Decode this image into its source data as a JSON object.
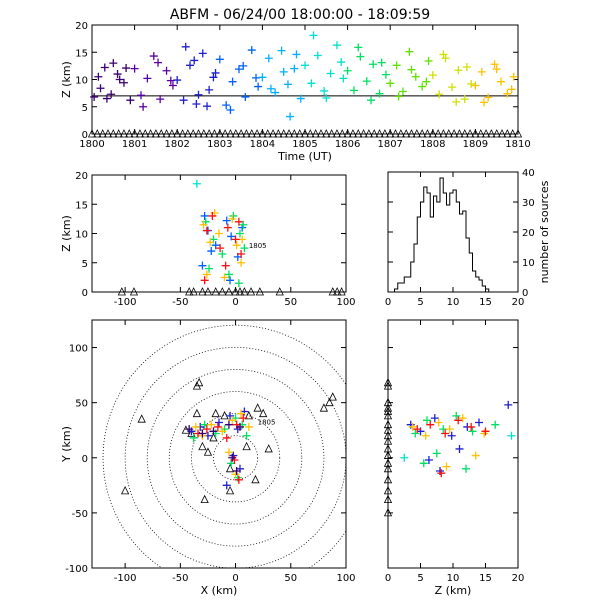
{
  "title": "ABFM - 06/24/00 18:00:00 - 18:09:59",
  "colors": {
    "axis": "#000000",
    "rainbow": [
      "#3a0070",
      "#5a00a0",
      "#2020d0",
      "#0060ff",
      "#00b0ff",
      "#00e0d0",
      "#00e060",
      "#60e000",
      "#d0e000",
      "#ffc000",
      "#ff7000",
      "#ff1010"
    ]
  },
  "chart_data": [
    {
      "id": "time-height",
      "type": "scatter",
      "xlabel": "Time (UT)",
      "ylabel": "Z (km)",
      "xlim": [
        1800,
        1810
      ],
      "ylim": [
        0,
        20
      ],
      "x_ticks": [
        "1800",
        "1801",
        "1802",
        "1803",
        "1804",
        "1805",
        "1806",
        "1807",
        "1808",
        "1809",
        "1810"
      ],
      "y_ticks": [
        "0",
        "5",
        "10",
        "15",
        "20"
      ],
      "reference_line_z": 7,
      "sensor_marker_z": 0,
      "series": [
        {
          "color_index": 0,
          "x": [
            1800.05,
            1800.15,
            1800.3,
            1800.45,
            1800.6,
            1800.75,
            1800.9,
            1800.2,
            1800.5,
            1800.8,
            1800.35,
            1800.65
          ],
          "y": [
            6.8,
            10.5,
            12.2,
            7.3,
            11.0,
            9.4,
            6.2,
            8.4,
            13.0,
            12.1,
            6.5,
            10.0
          ]
        },
        {
          "color_index": 1,
          "x": [
            1801.0,
            1801.15,
            1801.3,
            1801.45,
            1801.6,
            1801.75,
            1801.9,
            1801.2,
            1801.55,
            1801.85
          ],
          "y": [
            12.0,
            7.1,
            10.2,
            14.3,
            6.4,
            11.6,
            8.9,
            5.0,
            13.1,
            9.8
          ]
        },
        {
          "color_index": 2,
          "x": [
            1802.0,
            1802.15,
            1802.3,
            1802.45,
            1802.6,
            1802.75,
            1802.9,
            1802.2,
            1802.5,
            1802.85,
            1802.4,
            1802.7
          ],
          "y": [
            9.9,
            6.2,
            12.6,
            5.5,
            14.8,
            8.1,
            11.2,
            16.0,
            7.2,
            10.4,
            13.5,
            5.1
          ]
        },
        {
          "color_index": 3,
          "x": [
            1803.0,
            1803.15,
            1803.3,
            1803.45,
            1803.6,
            1803.75,
            1803.9,
            1803.25,
            1803.55,
            1803.85
          ],
          "y": [
            13.7,
            5.3,
            9.6,
            11.9,
            6.8,
            15.4,
            8.7,
            4.4,
            12.5,
            10.3
          ]
        },
        {
          "color_index": 4,
          "x": [
            1804.0,
            1804.15,
            1804.3,
            1804.45,
            1804.6,
            1804.75,
            1804.9,
            1804.2,
            1804.5,
            1804.8,
            1804.65
          ],
          "y": [
            10.4,
            13.9,
            7.6,
            15.3,
            9.1,
            12.0,
            6.5,
            8.3,
            11.4,
            14.6,
            3.2
          ]
        },
        {
          "color_index": 5,
          "x": [
            1805.0,
            1805.15,
            1805.3,
            1805.45,
            1805.6,
            1805.75,
            1805.9,
            1805.2,
            1805.5,
            1805.85
          ],
          "y": [
            12.6,
            9.3,
            14.4,
            7.9,
            11.1,
            16.3,
            10.2,
            18.1,
            6.6,
            13.2
          ]
        },
        {
          "color_index": 6,
          "x": [
            1806.0,
            1806.15,
            1806.3,
            1806.45,
            1806.6,
            1806.75,
            1806.9,
            1806.25,
            1806.55,
            1806.8
          ],
          "y": [
            11.6,
            8.0,
            14.2,
            9.7,
            12.8,
            7.4,
            10.9,
            15.9,
            6.2,
            13.1
          ]
        },
        {
          "color_index": 7,
          "x": [
            1807.0,
            1807.15,
            1807.3,
            1807.45,
            1807.6,
            1807.75,
            1807.9,
            1807.2,
            1807.5,
            1807.85
          ],
          "y": [
            9.3,
            12.6,
            7.8,
            15.1,
            10.5,
            8.7,
            13.4,
            6.9,
            11.8,
            9.6
          ]
        },
        {
          "color_index": 8,
          "x": [
            1808.0,
            1808.15,
            1808.3,
            1808.45,
            1808.6,
            1808.75,
            1808.9,
            1808.25,
            1808.55,
            1808.8
          ],
          "y": [
            10.8,
            7.3,
            13.9,
            8.6,
            11.7,
            6.4,
            9.2,
            14.6,
            5.9,
            12.3
          ]
        },
        {
          "color_index": 9,
          "x": [
            1809.0,
            1809.15,
            1809.3,
            1809.45,
            1809.6,
            1809.75,
            1809.9,
            1809.2,
            1809.5,
            1809.85
          ],
          "y": [
            8.9,
            11.4,
            6.7,
            12.8,
            9.6,
            7.4,
            10.5,
            5.8,
            11.9,
            8.2
          ]
        }
      ]
    },
    {
      "id": "x-height",
      "type": "scatter",
      "xlabel": "",
      "ylabel": "Z (km)",
      "xlim": [
        -130,
        100
      ],
      "ylim": [
        0,
        20
      ],
      "x_ticks": [
        "-100",
        "-50",
        "0",
        "50",
        "100"
      ],
      "y_ticks": [
        "0",
        "5",
        "10",
        "15",
        "20"
      ],
      "annotation": "1805",
      "sensors_x": [
        -103,
        -92,
        -42,
        -38,
        -30,
        -25,
        -18,
        -12,
        -6,
        0,
        4,
        8,
        14,
        22,
        40,
        88,
        92,
        96
      ],
      "series": [
        {
          "color_index": 3,
          "x": [
            -28,
            -25,
            -22,
            -8,
            -4,
            2,
            6,
            -30,
            -18,
            -5
          ],
          "y": [
            13.0,
            10.5,
            7.0,
            12.2,
            9.5,
            6.0,
            11.0,
            4.5,
            8.0,
            2.0
          ]
        },
        {
          "color_index": 6,
          "x": [
            -27,
            -20,
            -12,
            -2,
            4,
            8,
            -24,
            -6,
            3,
            7
          ],
          "y": [
            12.0,
            9.0,
            6.5,
            13.0,
            10.0,
            7.5,
            4.0,
            3.0,
            1.5,
            11.5
          ]
        },
        {
          "color_index": 9,
          "x": [
            -29,
            -23,
            -15,
            -3,
            1,
            5,
            -26,
            -10,
            6,
            -19
          ],
          "y": [
            11.5,
            8.5,
            10.0,
            12.5,
            8.0,
            5.0,
            3.0,
            2.5,
            9.0,
            13.5
          ]
        },
        {
          "color_index": 11,
          "x": [
            -26,
            -21,
            -14,
            -7,
            0,
            5,
            -28,
            -9,
            3
          ],
          "y": [
            10.5,
            13.0,
            7.5,
            11.0,
            9.0,
            6.5,
            2.0,
            4.5,
            12.0
          ]
        },
        {
          "color_index": 5,
          "x": [
            -35
          ],
          "y": [
            18.5
          ]
        }
      ]
    },
    {
      "id": "height-histogram",
      "type": "bar",
      "xlabel": "",
      "ylabel": "number of sources",
      "xlim": [
        0,
        20
      ],
      "ylim": [
        0,
        40
      ],
      "x_ticks": [
        "0",
        "5",
        "10",
        "15",
        "20"
      ],
      "y_ticks": [
        "0",
        "10",
        "20",
        "30",
        "40"
      ],
      "bin_width": 0.5,
      "bin_start": 1.0,
      "values": [
        1,
        3,
        3,
        5,
        5,
        10,
        16,
        25,
        30,
        35,
        33,
        25,
        32,
        30,
        38,
        33,
        29,
        33,
        34,
        30,
        26,
        27,
        18,
        13,
        7,
        5,
        4,
        2,
        1
      ]
    },
    {
      "id": "plan-view",
      "type": "scatter",
      "xlabel": "X (km)",
      "ylabel": "Y (km)",
      "xlim": [
        -130,
        100
      ],
      "ylim": [
        -100,
        125
      ],
      "x_ticks": [
        "-100",
        "-50",
        "0",
        "50",
        "100"
      ],
      "y_ticks": [
        "-100",
        "-50",
        "0",
        "50",
        "100"
      ],
      "range_rings_km": [
        20,
        40,
        60,
        80,
        100,
        120
      ],
      "annotation": "1805",
      "sensors": [
        [
          -35,
          65
        ],
        [
          -33,
          68
        ],
        [
          -100,
          -30
        ],
        [
          -85,
          35
        ],
        [
          -45,
          25
        ],
        [
          -40,
          22
        ],
        [
          -18,
          40
        ],
        [
          -10,
          38
        ],
        [
          12,
          38
        ],
        [
          20,
          45
        ],
        [
          25,
          40
        ],
        [
          30,
          8
        ],
        [
          18,
          -20
        ],
        [
          -25,
          5
        ],
        [
          -30,
          10
        ],
        [
          10,
          10
        ],
        [
          -5,
          -10
        ],
        [
          80,
          45
        ],
        [
          85,
          50
        ],
        [
          88,
          55
        ],
        [
          -28,
          -38
        ],
        [
          -5,
          -30
        ],
        [
          -35,
          40
        ],
        [
          -20,
          18
        ]
      ],
      "series": [
        {
          "color_index": 2,
          "x": [
            -40,
            -32,
            -25,
            -15,
            -5,
            2,
            8,
            -2,
            4,
            -8
          ],
          "y": [
            24,
            28,
            20,
            32,
            38,
            26,
            42,
            2,
            -10,
            -25
          ]
        },
        {
          "color_index": 6,
          "x": [
            -38,
            -28,
            -18,
            -10,
            0,
            6,
            10,
            -4,
            2
          ],
          "y": [
            18,
            30,
            22,
            26,
            36,
            30,
            20,
            -5,
            -18
          ]
        },
        {
          "color_index": 9,
          "x": [
            -36,
            -30,
            -22,
            -12,
            -3,
            5,
            12,
            -6,
            0
          ],
          "y": [
            28,
            20,
            30,
            24,
            34,
            40,
            28,
            5,
            -15
          ]
        },
        {
          "color_index": 11,
          "x": [
            -34,
            -26,
            -16,
            -8,
            1,
            7,
            -1,
            3
          ],
          "y": [
            22,
            26,
            28,
            18,
            30,
            36,
            -2,
            -20
          ]
        },
        {
          "color_index": 0,
          "x": [
            -42,
            -30,
            -20,
            -6,
            4,
            -3,
            1
          ],
          "y": [
            26,
            22,
            24,
            30,
            28,
            0,
            -12
          ]
        }
      ]
    },
    {
      "id": "z-y-view",
      "type": "scatter",
      "xlabel": "Z (km)",
      "ylabel": "",
      "xlim": [
        0,
        20
      ],
      "ylim": [
        -100,
        125
      ],
      "x_ticks": [
        "0",
        "5",
        "10",
        "15",
        "20"
      ],
      "y_ticks": [
        "-100",
        "-50",
        "0",
        "50",
        "100"
      ],
      "sensors_y": [
        68,
        65,
        50,
        45,
        42,
        38,
        30,
        25,
        20,
        15,
        8,
        2,
        -5,
        -10,
        -20,
        -30,
        -38,
        -50
      ],
      "series": [
        {
          "color_index": 2,
          "x": [
            3.5,
            5.0,
            7.2,
            9.8,
            12.2,
            14.0,
            6.3,
            11.0,
            18.5,
            8.0
          ],
          "y": [
            30,
            24,
            36,
            20,
            28,
            32,
            -2,
            8,
            48,
            -12
          ]
        },
        {
          "color_index": 6,
          "x": [
            4.2,
            6.0,
            8.5,
            10.5,
            13.0,
            16.5,
            7.5,
            12.0,
            5.5
          ],
          "y": [
            22,
            34,
            26,
            38,
            24,
            30,
            4,
            -10,
            -5
          ]
        },
        {
          "color_index": 9,
          "x": [
            3.8,
            5.8,
            7.8,
            9.5,
            11.5,
            14.8,
            9.0,
            13.5
          ],
          "y": [
            28,
            20,
            32,
            26,
            36,
            22,
            -8,
            2
          ]
        },
        {
          "color_index": 11,
          "x": [
            4.5,
            6.5,
            8.8,
            10.8,
            12.8,
            15.0,
            8.2
          ],
          "y": [
            26,
            30,
            22,
            34,
            28,
            24,
            -14
          ]
        },
        {
          "color_index": 5,
          "x": [
            19.0,
            2.5
          ],
          "y": [
            20,
            0
          ]
        }
      ]
    }
  ]
}
